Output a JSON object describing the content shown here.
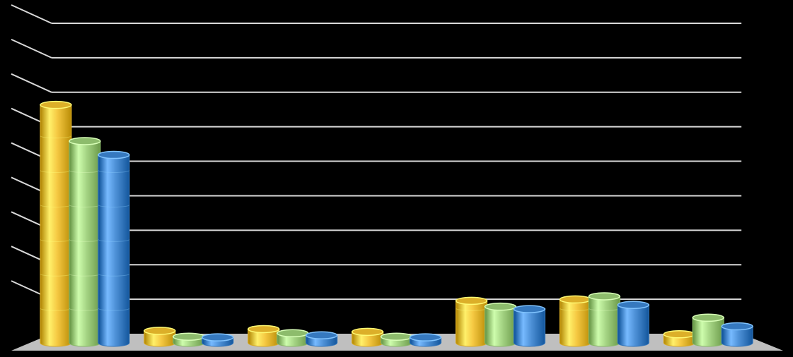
{
  "chart_data": {
    "type": "bar",
    "style": "3d-cylinder",
    "title": "",
    "xlabel": "",
    "ylabel": "",
    "categories": [
      "",
      "",
      "",
      "",
      "",
      "",
      ""
    ],
    "series": [
      {
        "color": "#F5C842",
        "values": [
          6.9,
          0.35,
          0.4,
          0.32,
          1.22,
          1.26,
          0.25
        ]
      },
      {
        "color": "#A6D585",
        "values": [
          5.85,
          0.18,
          0.28,
          0.18,
          1.05,
          1.35,
          0.73
        ]
      },
      {
        "color": "#4F92D8",
        "values": [
          5.45,
          0.16,
          0.22,
          0.16,
          0.98,
          1.1,
          0.48
        ]
      }
    ],
    "ylim": [
      0,
      9
    ],
    "grid": true,
    "legend": "none",
    "background": "#000000",
    "floor_color": "#BFBFBF",
    "gridline_color": "#D9D9D9"
  }
}
